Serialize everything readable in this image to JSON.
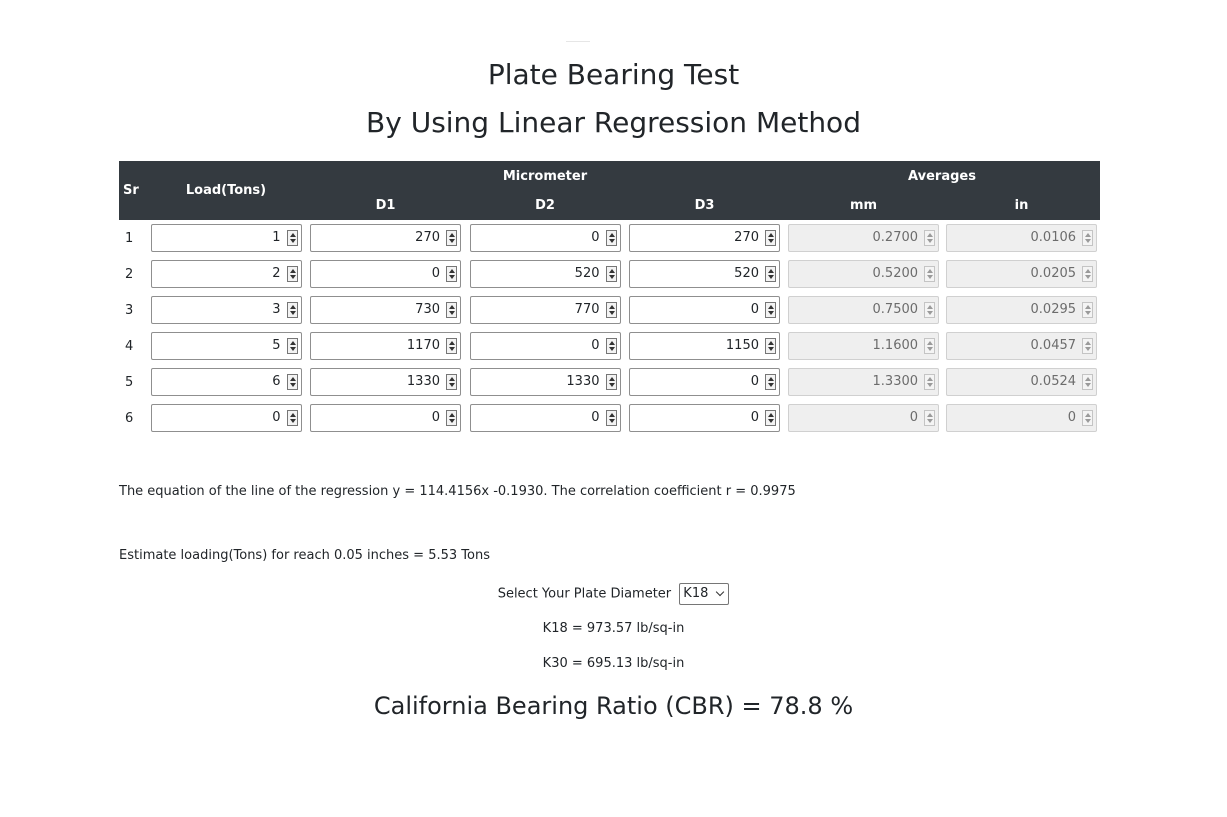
{
  "title": "Plate Bearing Test",
  "subtitle": "By Using Linear Regression Method",
  "table": {
    "headers": {
      "sr": "Sr",
      "load": "Load(Tons)",
      "micrometer": "Micrometer",
      "averages": "Averages",
      "d1": "D1",
      "d2": "D2",
      "d3": "D3",
      "mm": "mm",
      "in": "in"
    },
    "rows": [
      {
        "sr": "1",
        "load": "1",
        "d1": "270",
        "d2": "0",
        "d3": "270",
        "mm": "0.2700",
        "in": "0.0106"
      },
      {
        "sr": "2",
        "load": "2",
        "d1": "0",
        "d2": "520",
        "d3": "520",
        "mm": "0.5200",
        "in": "0.0205"
      },
      {
        "sr": "3",
        "load": "3",
        "d1": "730",
        "d2": "770",
        "d3": "0",
        "mm": "0.7500",
        "in": "0.0295"
      },
      {
        "sr": "4",
        "load": "5",
        "d1": "1170",
        "d2": "0",
        "d3": "1150",
        "mm": "1.1600",
        "in": "0.0457"
      },
      {
        "sr": "5",
        "load": "6",
        "d1": "1330",
        "d2": "1330",
        "d3": "0",
        "mm": "1.3300",
        "in": "0.0524"
      },
      {
        "sr": "6",
        "load": "0",
        "d1": "0",
        "d2": "0",
        "d3": "0",
        "mm": "0",
        "in": "0"
      }
    ]
  },
  "equation_text": "The equation of the line of the regression y = 114.4156x -0.1930. The correlation coefficient r = 0.9975",
  "estimate_text": "Estimate loading(Tons) for reach 0.05 inches = 5.53 Tons",
  "plate": {
    "label": "Select Your Plate Diameter",
    "selected": "K18"
  },
  "k18_text": "K18 = 973.57 lb/sq-in",
  "k30_text": "K30 = 695.13 lb/sq-in",
  "cbr_text": "California Bearing Ratio (CBR) = 78.8 %",
  "colors": {
    "header_bg": "#343a40",
    "header_text": "#ffffff",
    "readonly_bg": "#efefef"
  }
}
